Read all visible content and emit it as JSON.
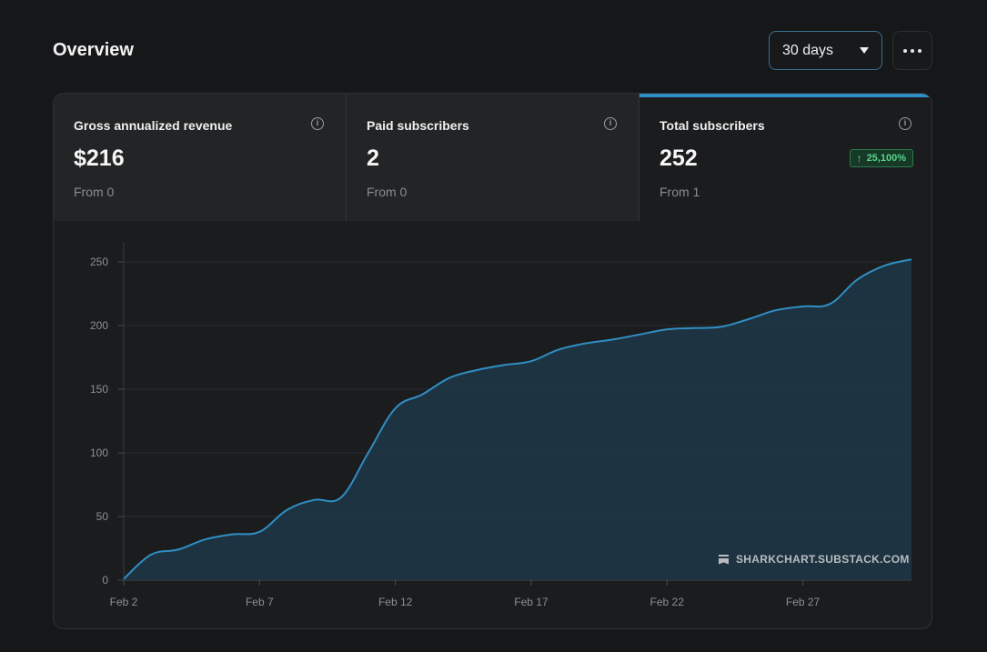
{
  "header": {
    "title": "Overview",
    "range_value": "30 days"
  },
  "stats": [
    {
      "label": "Gross annualized revenue",
      "value": "$216",
      "from": "From 0"
    },
    {
      "label": "Paid subscribers",
      "value": "2",
      "from": "From 0"
    },
    {
      "label": "Total subscribers",
      "value": "252",
      "from": "From 1",
      "badge": "25,100%"
    }
  ],
  "watermark": "SHARKCHART.SUBSTACK.COM",
  "colors": {
    "accent": "#2f8fc4",
    "positive": "#58d38b"
  },
  "chart_data": {
    "type": "area",
    "title": "Total subscribers",
    "xlabel": "",
    "ylabel": "",
    "ylim": [
      0,
      265
    ],
    "yticks": [
      0,
      50,
      100,
      150,
      200,
      250
    ],
    "xticks": [
      {
        "day": 2,
        "label": "Feb 2"
      },
      {
        "day": 7,
        "label": "Feb 7"
      },
      {
        "day": 12,
        "label": "Feb 12"
      },
      {
        "day": 17,
        "label": "Feb 17"
      },
      {
        "day": 22,
        "label": "Feb 22"
      },
      {
        "day": 27,
        "label": "Feb 27"
      }
    ],
    "xlim": [
      2,
      31
    ],
    "series": [
      {
        "name": "Total subscribers",
        "x": [
          2,
          3,
          4,
          5,
          6,
          7,
          8,
          9,
          10,
          11,
          12,
          13,
          14,
          15,
          16,
          17,
          18,
          19,
          20,
          21,
          22,
          23,
          24,
          25,
          26,
          27,
          28,
          29,
          30,
          31
        ],
        "values": [
          1,
          20,
          24,
          32,
          36,
          38,
          55,
          63,
          65,
          100,
          135,
          146,
          159,
          165,
          169,
          172,
          181,
          186,
          189,
          193,
          197,
          198,
          199,
          205,
          212,
          215,
          217,
          236,
          247,
          252
        ]
      }
    ]
  }
}
